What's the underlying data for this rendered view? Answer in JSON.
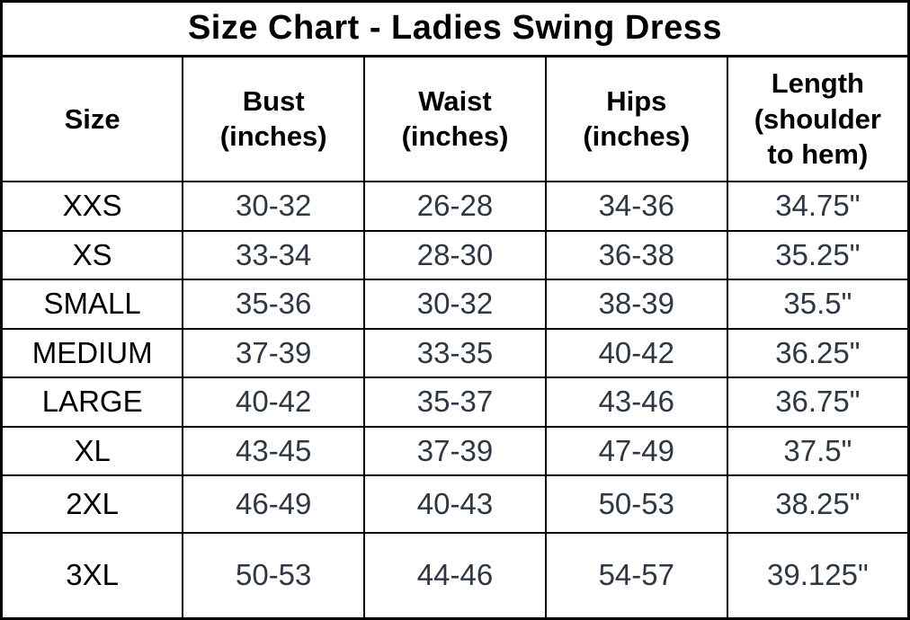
{
  "page": {
    "background": "#ffffff",
    "border_color": "#000000"
  },
  "chart_data": {
    "type": "table",
    "title": "Size Chart - Ladies Swing Dress",
    "columns": [
      "Size",
      "Bust\n(inches)",
      "Waist\n(inches)",
      "Hips\n(inches)",
      "Length\n(shoulder\nto hem)"
    ],
    "rows": [
      [
        "XXS",
        "30-32",
        "26-28",
        "34-36",
        "34.75\""
      ],
      [
        "XS",
        "33-34",
        "28-30",
        "36-38",
        "35.25\""
      ],
      [
        "SMALL",
        "35-36",
        "30-32",
        "38-39",
        "35.5\""
      ],
      [
        "MEDIUM",
        "37-39",
        "33-35",
        "40-42",
        "36.25\""
      ],
      [
        "LARGE",
        "40-42",
        "35-37",
        "43-46",
        "36.75\""
      ],
      [
        "XL",
        "43-45",
        "37-39",
        "47-49",
        "37.5\""
      ],
      [
        "2XL",
        "46-49",
        "40-43",
        "50-53",
        "38.25\""
      ],
      [
        "3XL",
        "50-53",
        "44-46",
        "54-57",
        "39.125\""
      ]
    ],
    "layout_hints": {
      "title_row": "spans all 5 columns, bold, centered",
      "grid": "on, black lines",
      "tall_rows": [
        "2XL",
        "3XL"
      ]
    },
    "text_colors": {
      "title": "#000000",
      "header": "#000000",
      "size_column": "#000000",
      "measurements": "#2e3744"
    }
  }
}
